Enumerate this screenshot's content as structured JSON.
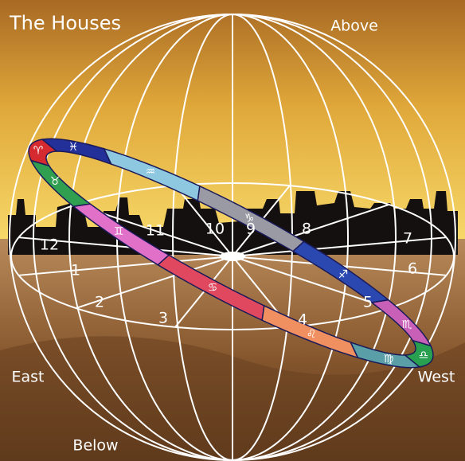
{
  "title": "The Houses",
  "directions": {
    "above": "Above",
    "below": "Below",
    "east": "East",
    "west": "West"
  },
  "houses": [
    "1",
    "2",
    "3",
    "4",
    "5",
    "6",
    "7",
    "8",
    "9",
    "10",
    "11",
    "12"
  ],
  "signs": [
    "♈",
    "♓",
    "♒",
    "♑",
    "♐",
    "♏",
    "♎",
    "♍",
    "♌",
    "♋",
    "♊",
    "♉"
  ]
}
